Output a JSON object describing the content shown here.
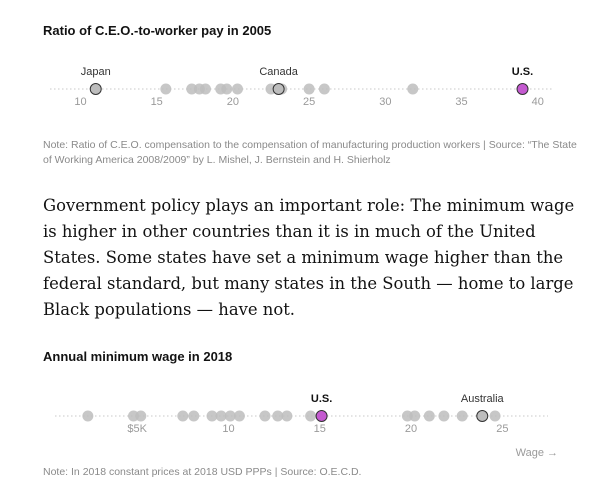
{
  "chart_data": [
    {
      "type": "scatter",
      "title": "Ratio of C.E.O.-to-worker pay in 2005",
      "xlim": [
        8,
        41
      ],
      "ticks": [
        10,
        15,
        20,
        25,
        30,
        35,
        40
      ],
      "tick_labels": [
        "10",
        "15",
        "20",
        "25",
        "30",
        "35",
        "40"
      ],
      "points": [
        {
          "label": "Japan",
          "value": 11
        },
        {
          "label": "",
          "value": 15.6
        },
        {
          "label": "",
          "value": 17.3
        },
        {
          "label": "",
          "value": 17.8
        },
        {
          "label": "",
          "value": 18.2
        },
        {
          "label": "",
          "value": 19.2
        },
        {
          "label": "",
          "value": 19.6
        },
        {
          "label": "",
          "value": 20.3
        },
        {
          "label": "",
          "value": 22.5
        },
        {
          "label": "Canada",
          "value": 23
        },
        {
          "label": "",
          "value": 23.2
        },
        {
          "label": "",
          "value": 25
        },
        {
          "label": "",
          "value": 26
        },
        {
          "label": "",
          "value": 31.8
        },
        {
          "label": "U.S.",
          "value": 39
        }
      ],
      "highlight": "U.S.",
      "xlabel": "",
      "note": "Note: Ratio of C.E.O. compensation to the compensation of manufacturing production workers | Source: “The State of Working America 2008/2009” by L. Mishel, J. Bernstein and H. Shierholz"
    },
    {
      "type": "scatter",
      "title": "Annual minimum wage in 2018",
      "xlim": [
        0.5,
        27.5
      ],
      "ticks": [
        5,
        10,
        15,
        20,
        25
      ],
      "tick_labels": [
        "$5K",
        "10",
        "15",
        "20",
        "25"
      ],
      "points": [
        {
          "label": "",
          "value": 2.3
        },
        {
          "label": "",
          "value": 4.8
        },
        {
          "label": "",
          "value": 5.2
        },
        {
          "label": "",
          "value": 7.5
        },
        {
          "label": "",
          "value": 8.1
        },
        {
          "label": "",
          "value": 9.1
        },
        {
          "label": "",
          "value": 9.6
        },
        {
          "label": "",
          "value": 10.1
        },
        {
          "label": "",
          "value": 10.6
        },
        {
          "label": "",
          "value": 12
        },
        {
          "label": "",
          "value": 12.7
        },
        {
          "label": "",
          "value": 13.2
        },
        {
          "label": "",
          "value": 14.5
        },
        {
          "label": "U.S.",
          "value": 15.1
        },
        {
          "label": "",
          "value": 19.8
        },
        {
          "label": "",
          "value": 20.2
        },
        {
          "label": "",
          "value": 21
        },
        {
          "label": "",
          "value": 21.8
        },
        {
          "label": "",
          "value": 22.8
        },
        {
          "label": "Australia",
          "value": 23.9
        },
        {
          "label": "",
          "value": 24.6
        }
      ],
      "highlight": "U.S.",
      "xlabel": "Wage →",
      "note": "Note: In 2018 constant prices at 2018 USD PPPs | Source: O.E.C.D."
    }
  ],
  "article": {
    "paragraph": "Government policy plays an important role: The minimum wage is higher in other countries than it is in much of the United States. Some states have set a minimum wage higher than the federal standard, but many states in the South — home to large Black populations — have not."
  },
  "colors": {
    "dot": "#bdbdbd",
    "highlight": "#c45ad0",
    "outline": "#333333",
    "axis": "#c8c8c8"
  }
}
